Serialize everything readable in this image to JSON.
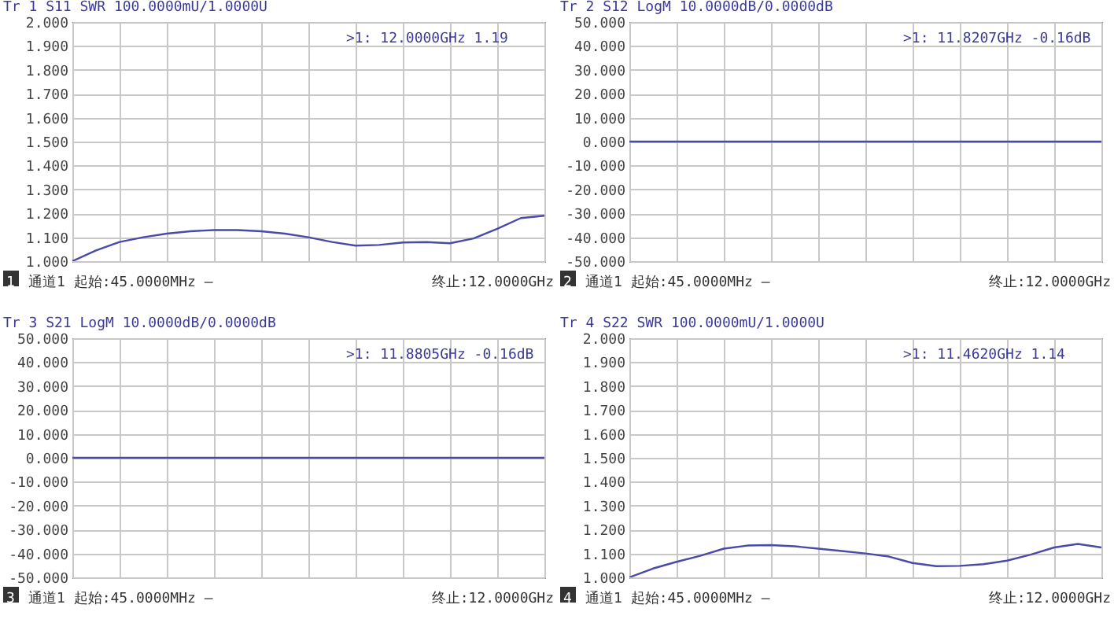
{
  "chart_data": [
    {
      "type": "line",
      "title": "Tr 1  S11 SWR 100.0000mU/1.0000U",
      "annotations": [
        ">1:  12.0000GHz 1.19",
        "1",
        "通道1  起始:45.0000MHz —",
        "终止:12.0000GHz"
      ],
      "categories": [
        null,
        null,
        null,
        null,
        null,
        null,
        null,
        null,
        null,
        null,
        null,
        null,
        null,
        null,
        null,
        null,
        null,
        null,
        null,
        null,
        null
      ],
      "series": [
        {
          "color": "#4a4aa8",
          "values": [
            1.0,
            1.045,
            1.08,
            1.1,
            1.115,
            1.125,
            1.13,
            1.13,
            1.125,
            1.115,
            1.1,
            1.08,
            1.065,
            1.068,
            1.078,
            1.08,
            1.075,
            1.095,
            1.135,
            1.18,
            1.19
          ]
        }
      ],
      "ylim": [
        1,
        2
      ],
      "yticks": [
        {
          "value": 1,
          "label": "1.000"
        },
        {
          "value": 1.1,
          "label": "1.100"
        },
        {
          "value": 1.2,
          "label": "1.200"
        },
        {
          "value": 1.3,
          "label": "1.300"
        },
        {
          "value": 1.4,
          "label": "1.400"
        },
        {
          "value": 1.5,
          "label": "1.500"
        },
        {
          "value": 1.6,
          "label": "1.600"
        },
        {
          "value": 1.7,
          "label": "1.700"
        },
        {
          "value": 1.8,
          "label": "1.800"
        },
        {
          "value": 1.9,
          "label": "1.900"
        },
        {
          "value": 2,
          "label": "2.000"
        }
      ],
      "grid": true
    },
    {
      "type": "line",
      "title": "Tr 2  S12 LogM 10.0000dB/0.0000dB",
      "annotations": [
        ">1:  11.8207GHz -0.16dB",
        "2",
        "通道1  起始:45.0000MHz —",
        "终止:12.0000GHz"
      ],
      "categories": [
        null,
        null,
        null,
        null,
        null,
        null,
        null,
        null,
        null,
        null,
        null,
        null,
        null,
        null,
        null,
        null,
        null,
        null,
        null,
        null,
        null
      ],
      "series": [
        {
          "color": "#4a4aa8",
          "values": [
            0,
            0,
            0,
            0,
            0,
            0,
            0,
            0,
            0,
            0,
            0,
            0,
            0,
            0,
            0,
            0,
            0,
            0,
            0,
            0,
            0
          ]
        }
      ],
      "ylim": [
        -50,
        50
      ],
      "yticks": [
        {
          "value": -50,
          "label": "-50.000"
        },
        {
          "value": -40,
          "label": "-40.000"
        },
        {
          "value": -30,
          "label": "-30.000"
        },
        {
          "value": -20,
          "label": "-20.000"
        },
        {
          "value": -10,
          "label": "-10.000"
        },
        {
          "value": 0,
          "label": "0.000"
        },
        {
          "value": 10,
          "label": "10.000"
        },
        {
          "value": 20,
          "label": "20.000"
        },
        {
          "value": 30,
          "label": "30.000"
        },
        {
          "value": 40,
          "label": "40.000"
        },
        {
          "value": 50,
          "label": "50.000"
        }
      ],
      "grid": true
    },
    {
      "type": "line",
      "title": "Tr 3  S21 LogM 10.0000dB/0.0000dB",
      "annotations": [
        ">1:  11.8805GHz -0.16dB",
        "3",
        "通道1  起始:45.0000MHz —",
        "终止:12.0000GHz"
      ],
      "categories": [
        null,
        null,
        null,
        null,
        null,
        null,
        null,
        null,
        null,
        null,
        null,
        null,
        null,
        null,
        null,
        null,
        null,
        null,
        null,
        null,
        null
      ],
      "series": [
        {
          "color": "#4a4aa8",
          "values": [
            0,
            0,
            0,
            0,
            0,
            0,
            0,
            0,
            0,
            0,
            0,
            0,
            0,
            0,
            0,
            0,
            0,
            0,
            0,
            0,
            0
          ]
        }
      ],
      "ylim": [
        -50,
        50
      ],
      "yticks": [
        {
          "value": -50,
          "label": "-50.000"
        },
        {
          "value": -40,
          "label": "-40.000"
        },
        {
          "value": -30,
          "label": "-30.000"
        },
        {
          "value": -20,
          "label": "-20.000"
        },
        {
          "value": -10,
          "label": "-10.000"
        },
        {
          "value": 0,
          "label": "0.000"
        },
        {
          "value": 10,
          "label": "10.000"
        },
        {
          "value": 20,
          "label": "20.000"
        },
        {
          "value": 30,
          "label": "30.000"
        },
        {
          "value": 40,
          "label": "40.000"
        },
        {
          "value": 50,
          "label": "50.000"
        }
      ],
      "grid": true
    },
    {
      "type": "line",
      "title": "Tr 4  S22 SWR 100.0000mU/1.0000U",
      "annotations": [
        ">1:  11.4620GHz 1.14",
        "4",
        "通道1  起始:45.0000MHz —",
        "终止:12.0000GHz"
      ],
      "categories": [
        null,
        null,
        null,
        null,
        null,
        null,
        null,
        null,
        null,
        null,
        null,
        null,
        null,
        null,
        null,
        null,
        null,
        null,
        null,
        null,
        null
      ],
      "series": [
        {
          "color": "#4a4aa8",
          "values": [
            1.0,
            1.037,
            1.065,
            1.09,
            1.12,
            1.133,
            1.135,
            1.13,
            1.12,
            1.11,
            1.1,
            1.087,
            1.06,
            1.047,
            1.048,
            1.055,
            1.07,
            1.095,
            1.125,
            1.14,
            1.125
          ]
        }
      ],
      "ylim": [
        1,
        2
      ],
      "yticks": [
        {
          "value": 1,
          "label": "1.000"
        },
        {
          "value": 1.1,
          "label": "1.100"
        },
        {
          "value": 1.2,
          "label": "1.200"
        },
        {
          "value": 1.3,
          "label": "1.300"
        },
        {
          "value": 1.4,
          "label": "1.400"
        },
        {
          "value": 1.5,
          "label": "1.500"
        },
        {
          "value": 1.6,
          "label": "1.600"
        },
        {
          "value": 1.7,
          "label": "1.700"
        },
        {
          "value": 1.8,
          "label": "1.800"
        },
        {
          "value": 1.9,
          "label": "1.900"
        },
        {
          "value": 2,
          "label": "2.000"
        }
      ],
      "grid": true
    }
  ]
}
